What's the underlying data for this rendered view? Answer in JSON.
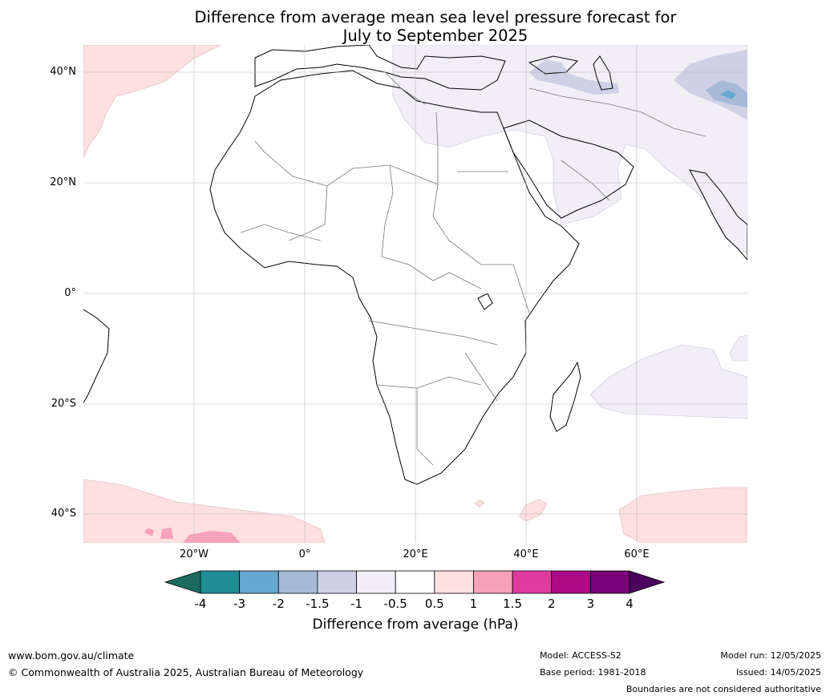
{
  "title": {
    "line1": "Difference from average mean sea level pressure forecast for",
    "line2": "July to September 2025"
  },
  "map": {
    "projection": "equirectangular",
    "region": "Africa and surrounding oceans",
    "lon_range": [
      -40,
      80
    ],
    "lat_range": [
      -45,
      45
    ],
    "gridlines": true,
    "lat_ticks": [
      "40°N",
      "20°N",
      "0°",
      "20°S",
      "40°S"
    ],
    "lon_ticks": [
      "20°W",
      "0°",
      "20°E",
      "40°E",
      "60°E"
    ]
  },
  "colorbar": {
    "title": "Difference from average (hPa)",
    "tick_labels": [
      "-4",
      "-3",
      "-2",
      "-1.5",
      "-1",
      "-0.5",
      "0.5",
      "1",
      "1.5",
      "2",
      "3",
      "4"
    ],
    "colors": [
      "#1b6b5f",
      "#1f8e96",
      "#66a8cf",
      "#a6bad8",
      "#cfd0e6",
      "#f1eef5",
      "#ffffff",
      "#fde0df",
      "#f7a2ba",
      "#df3b9e",
      "#ad0a86",
      "#7a0177",
      "#4a005c"
    ],
    "extend": "both"
  },
  "footer": {
    "website": "www.bom.gov.au/climate",
    "copyright": "© Commonwealth of Australia 2025, Australian Bureau of Meteorology",
    "model": "Model: ACCESS-S2",
    "base_period": "Base period: 1981-2018",
    "model_run": "Model run: 12/05/2025",
    "issued": "Issued: 14/05/2025",
    "disclaimer": "Boundaries are not considered authoritative"
  }
}
